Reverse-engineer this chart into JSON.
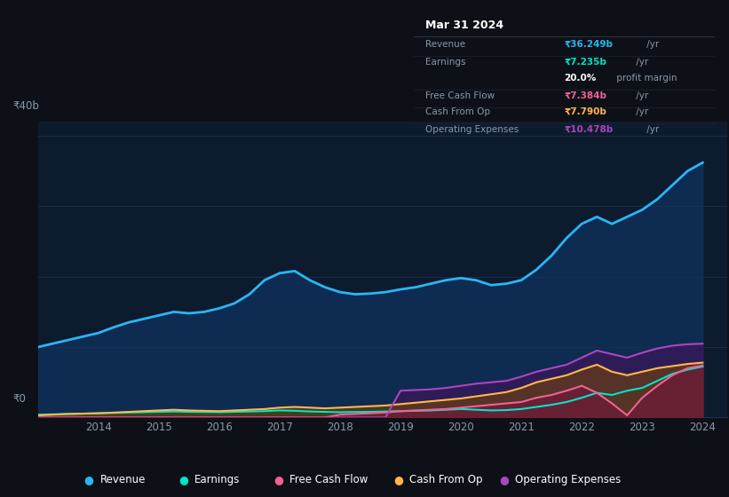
{
  "bg_color": "#0d1117",
  "plot_bg_color": "#0d1b2e",
  "grid_color": "#203050",
  "years": [
    2013.0,
    2013.25,
    2013.5,
    2013.75,
    2014.0,
    2014.25,
    2014.5,
    2014.75,
    2015.0,
    2015.25,
    2015.5,
    2015.75,
    2016.0,
    2016.25,
    2016.5,
    2016.75,
    2017.0,
    2017.25,
    2017.5,
    2017.75,
    2018.0,
    2018.25,
    2018.5,
    2018.75,
    2019.0,
    2019.25,
    2019.5,
    2019.75,
    2020.0,
    2020.25,
    2020.5,
    2020.75,
    2021.0,
    2021.25,
    2021.5,
    2021.75,
    2022.0,
    2022.25,
    2022.5,
    2022.75,
    2023.0,
    2023.25,
    2023.5,
    2023.75,
    2024.0
  ],
  "revenue": [
    10.0,
    10.5,
    11.0,
    11.5,
    12.0,
    12.8,
    13.5,
    14.0,
    14.5,
    15.0,
    14.8,
    15.0,
    15.5,
    16.2,
    17.5,
    19.5,
    20.5,
    20.8,
    19.5,
    18.5,
    17.8,
    17.5,
    17.6,
    17.8,
    18.2,
    18.5,
    19.0,
    19.5,
    19.8,
    19.5,
    18.8,
    19.0,
    19.5,
    21.0,
    23.0,
    25.5,
    27.5,
    28.5,
    27.5,
    28.5,
    29.5,
    31.0,
    33.0,
    35.0,
    36.2
  ],
  "earnings": [
    0.4,
    0.45,
    0.5,
    0.55,
    0.6,
    0.65,
    0.7,
    0.75,
    0.8,
    0.85,
    0.8,
    0.78,
    0.75,
    0.8,
    0.85,
    0.9,
    1.0,
    0.95,
    0.85,
    0.8,
    0.75,
    0.78,
    0.8,
    0.85,
    0.9,
    0.95,
    1.0,
    1.1,
    1.2,
    1.1,
    1.0,
    1.05,
    1.2,
    1.5,
    1.8,
    2.2,
    2.8,
    3.5,
    3.2,
    3.8,
    4.2,
    5.2,
    6.2,
    6.8,
    7.235
  ],
  "free_cash_flow": [
    0.0,
    0.0,
    0.0,
    0.0,
    0.0,
    0.0,
    0.0,
    0.0,
    0.0,
    0.0,
    0.0,
    0.0,
    0.0,
    0.0,
    0.0,
    0.0,
    0.0,
    0.0,
    0.0,
    0.0,
    0.4,
    0.5,
    0.6,
    0.7,
    0.9,
    1.0,
    1.1,
    1.2,
    1.4,
    1.6,
    1.8,
    2.0,
    2.2,
    2.8,
    3.2,
    3.8,
    4.5,
    3.5,
    2.0,
    0.3,
    2.8,
    4.5,
    6.0,
    7.0,
    7.384
  ],
  "cash_from_op": [
    0.3,
    0.4,
    0.5,
    0.55,
    0.6,
    0.7,
    0.8,
    0.9,
    1.0,
    1.1,
    1.0,
    0.95,
    0.9,
    1.0,
    1.1,
    1.2,
    1.4,
    1.5,
    1.4,
    1.3,
    1.4,
    1.5,
    1.6,
    1.7,
    1.9,
    2.1,
    2.3,
    2.5,
    2.7,
    3.0,
    3.3,
    3.6,
    4.2,
    5.0,
    5.5,
    6.0,
    6.8,
    7.5,
    6.5,
    6.0,
    6.5,
    7.0,
    7.3,
    7.6,
    7.79
  ],
  "operating_expenses": [
    0.0,
    0.0,
    0.0,
    0.0,
    0.0,
    0.0,
    0.0,
    0.0,
    0.0,
    0.0,
    0.0,
    0.0,
    0.0,
    0.0,
    0.0,
    0.0,
    0.0,
    0.0,
    0.0,
    0.0,
    0.0,
    0.0,
    0.0,
    0.0,
    3.8,
    3.9,
    4.0,
    4.2,
    4.5,
    4.8,
    5.0,
    5.2,
    5.8,
    6.5,
    7.0,
    7.5,
    8.5,
    9.5,
    9.0,
    8.5,
    9.2,
    9.8,
    10.2,
    10.4,
    10.478
  ],
  "revenue_color": "#29b6f6",
  "earnings_color": "#00e5cc",
  "free_cash_flow_color": "#f06292",
  "cash_from_op_color": "#ffb74d",
  "operating_expenses_color": "#ab47bc",
  "revenue_fill": "#103a6e",
  "earnings_fill": "#003d33",
  "opex_fill": "#4a1060",
  "cfo_fill": "#7a4500",
  "fcf_fill": "#7a1040",
  "ylim": [
    0,
    42
  ],
  "xlim": [
    2013.0,
    2024.4
  ],
  "xticks": [
    2014,
    2015,
    2016,
    2017,
    2018,
    2019,
    2020,
    2021,
    2022,
    2023,
    2024
  ],
  "ytick_positions": [
    0,
    10,
    20,
    30,
    40
  ],
  "ylabel_40b": "₹40b",
  "ylabel_0": "₹0",
  "tooltip_date": "Mar 31 2024",
  "tooltip_items": [
    {
      "label": "Revenue",
      "value": "₹36.249b",
      "suffix": " /yr",
      "color": "#29b6f6",
      "has_divider": true
    },
    {
      "label": "Earnings",
      "value": "₹7.235b",
      "suffix": " /yr",
      "color": "#00e5cc",
      "has_divider": false
    },
    {
      "label": "",
      "value": "20.0%",
      "suffix": " profit margin",
      "color": "#ffffff",
      "has_divider": true
    },
    {
      "label": "Free Cash Flow",
      "value": "₹7.384b",
      "suffix": " /yr",
      "color": "#f06292",
      "has_divider": true
    },
    {
      "label": "Cash From Op",
      "value": "₹7.790b",
      "suffix": " /yr",
      "color": "#ffb74d",
      "has_divider": true
    },
    {
      "label": "Operating Expenses",
      "value": "₹10.478b",
      "suffix": " /yr",
      "color": "#ab47bc",
      "has_divider": false
    }
  ],
  "legend_items": [
    {
      "label": "Revenue",
      "color": "#29b6f6"
    },
    {
      "label": "Earnings",
      "color": "#00e5cc"
    },
    {
      "label": "Free Cash Flow",
      "color": "#f06292"
    },
    {
      "label": "Cash From Op",
      "color": "#ffb74d"
    },
    {
      "label": "Operating Expenses",
      "color": "#ab47bc"
    }
  ]
}
